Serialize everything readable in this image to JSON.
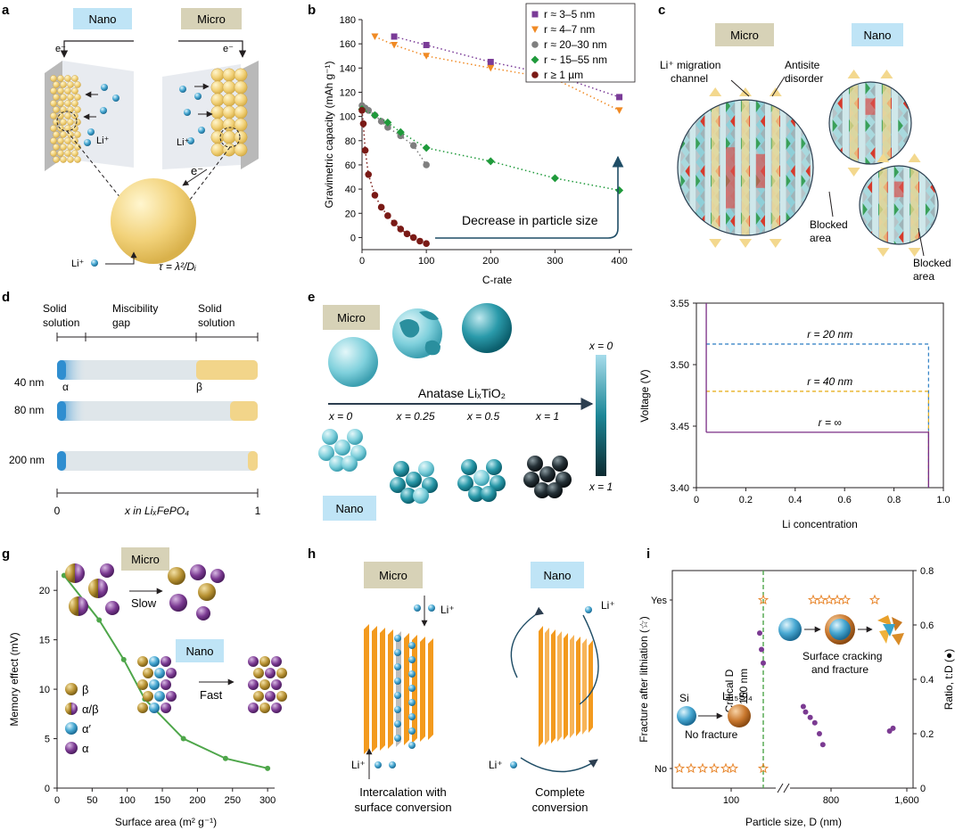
{
  "panels": {
    "a": {
      "letter": "a",
      "nano": "Nano",
      "micro": "Micro",
      "e1": "e⁻",
      "e2": "e⁻",
      "e3": "e⁻",
      "li1": "Li⁺",
      "li2": "Li⁺",
      "li3": "Li⁺",
      "tau": "τ = λ²/Dᵢ"
    },
    "b": {
      "letter": "b",
      "annotation": "Decrease in particle size"
    },
    "c": {
      "letter": "c",
      "micro": "Micro",
      "nano": "Nano",
      "channel1": "Li⁺ migration",
      "channel2": "channel",
      "antisite1": "Antisite",
      "antisite2": "disorder",
      "blocked1a": "Blocked",
      "blocked1b": "area",
      "blocked2a": "Blocked",
      "blocked2b": "area"
    },
    "d": {
      "letter": "d",
      "ss1a": "Solid",
      "ss1b": "solution",
      "gap1": "Miscibility",
      "gap2": "gap",
      "ss2a": "Solid",
      "ss2b": "solution",
      "alpha": "α",
      "beta": "β",
      "r1": "40 nm",
      "r2": "80 nm",
      "r3": "200 nm",
      "x0": "0",
      "x1": "1",
      "xlabel": "x in LiₓFePO₄"
    },
    "e": {
      "letter": "e",
      "micro": "Micro",
      "nano": "Nano",
      "arrow": "Anatase LiₓTiO₂",
      "x0": "x = 0",
      "x025": "x = 0.25",
      "x05": "x = 0.5",
      "x1": "x = 1",
      "cb_top": "x = 0",
      "cb_bot": "x = 1"
    },
    "g": {
      "letter": "g",
      "micro": "Micro",
      "nano": "Nano",
      "slow": "Slow",
      "fast": "Fast",
      "leg_beta": "β",
      "leg_ab": "α/β",
      "leg_ap": "α′",
      "leg_a": "α"
    },
    "h": {
      "letter": "h",
      "micro": "Micro",
      "nano": "Nano",
      "li1": "Li⁺",
      "li2": "Li⁺",
      "li3": "Li⁺",
      "li4": "Li⁺",
      "cap1a": "Intercalation with",
      "cap1b": "surface conversion",
      "cap2a": "Complete",
      "cap2b": "conversion"
    },
    "i": {
      "letter": "i",
      "crit1": "Critical D",
      "crit2": "~ 150 nm",
      "si": "Si",
      "lisi": "Li₁₅Si₄",
      "nofrac": "No fracture",
      "surf1": "Surface cracking",
      "surf2": "and fracture"
    }
  },
  "chart_data": [
    {
      "panel": "b",
      "type": "scatter",
      "xlabel": "C-rate",
      "ylabel": "Gravimetric capacity (mAh g⁻¹)",
      "xlim": [
        0,
        420
      ],
      "ylim": [
        -10,
        180
      ],
      "xticks": [
        0,
        100,
        200,
        300,
        400
      ],
      "yticks": [
        0,
        20,
        40,
        60,
        80,
        100,
        120,
        140,
        160,
        180
      ],
      "legend_position": "top-right",
      "series": [
        {
          "name": "r ≈ 3–5 nm",
          "color": "#7a3b97",
          "marker": "square",
          "x": [
            50,
            100,
            200,
            300,
            400
          ],
          "y": [
            166,
            159,
            145,
            134,
            116
          ]
        },
        {
          "name": "r ≈ 4–7 nm",
          "color": "#f08a24",
          "marker": "triangle",
          "x": [
            20,
            50,
            100,
            200,
            300,
            400
          ],
          "y": [
            166,
            159,
            150,
            140,
            131,
            105
          ]
        },
        {
          "name": "r ≈ 20–30 nm",
          "color": "#7f7f7f",
          "marker": "circle",
          "x": [
            0,
            5,
            10,
            20,
            30,
            40,
            60,
            80,
            100
          ],
          "y": [
            109,
            107,
            105,
            101,
            96,
            91,
            84,
            76,
            60
          ]
        },
        {
          "name": "r ~ 15–55 nm",
          "color": "#1f9a3b",
          "marker": "diamond",
          "x": [
            0,
            20,
            40,
            60,
            100,
            200,
            300,
            400
          ],
          "y": [
            106,
            101,
            95,
            87,
            74,
            63,
            49,
            39
          ]
        },
        {
          "name": "r ≥ 1 µm",
          "color": "#7a1a16",
          "marker": "circle",
          "x": [
            0,
            2,
            5,
            10,
            20,
            30,
            40,
            50,
            60,
            70,
            80,
            90,
            100
          ],
          "y": [
            105,
            94,
            72,
            52,
            35,
            25,
            18,
            12,
            7,
            3,
            0,
            -3,
            -5
          ]
        }
      ]
    },
    {
      "panel": "f",
      "type": "line",
      "xlabel": "Li concentration",
      "ylabel": "Voltage (V)",
      "xlim": [
        0,
        1
      ],
      "ylim": [
        3.4,
        3.55
      ],
      "xticks": [
        0,
        0.2,
        0.4,
        0.6,
        0.8,
        1.0
      ],
      "xtick_labels": [
        "0",
        "0.2",
        "0.4",
        "0.6",
        "0.8",
        "1.0"
      ],
      "yticks": [
        3.4,
        3.45,
        3.5,
        3.55
      ],
      "ytick_labels": [
        "3.40",
        "3.45",
        "3.50",
        "3.55"
      ],
      "series": [
        {
          "name": "r = 20 nm",
          "color": "#3a86c8",
          "dashed": true,
          "plateau": 3.5167,
          "x0": 0.04,
          "x1": 0.94
        },
        {
          "name": "r = 40 nm",
          "color": "#e8b020",
          "dashed": true,
          "plateau": 3.4783,
          "x0": 0.04,
          "x1": 0.94
        },
        {
          "name": "r = ∞",
          "color": "#7a2d86",
          "dashed": false,
          "plateau": 3.445,
          "x0": 0.04,
          "x1": 0.94
        }
      ]
    },
    {
      "panel": "g",
      "type": "line",
      "xlabel": "Surface area (m² g⁻¹)",
      "ylabel": "Memory effect (mV)",
      "xlim": [
        0,
        310
      ],
      "ylim": [
        0,
        22
      ],
      "xticks": [
        0,
        50,
        100,
        150,
        200,
        250,
        300
      ],
      "yticks": [
        0,
        5,
        10,
        15,
        20
      ],
      "series": [
        {
          "name": "",
          "color": "#4ea64a",
          "x": [
            10,
            60,
            95,
            125,
            180,
            240,
            300
          ],
          "y": [
            21.5,
            17,
            13,
            9,
            5,
            3,
            2
          ]
        }
      ]
    },
    {
      "panel": "i",
      "type": "scatter",
      "xlabel": "Particle size, D (nm)",
      "ylabel": "Fracture after lithiation (☆)",
      "y2label": "Ratio, t:D (●)",
      "xticks": [
        100,
        800,
        1600
      ],
      "xtick_labels": [
        "100",
        "800",
        "1,600"
      ],
      "ylabels": [
        "Yes",
        "No"
      ],
      "y2lim": [
        0,
        0.8
      ],
      "y2ticks": [
        0,
        0.2,
        0.4,
        0.6,
        0.8
      ],
      "y2tick_labels": [
        "0",
        "0.2",
        "0.4",
        "0.6",
        "0.8"
      ],
      "stars_no_px": [
        762,
        775,
        788,
        801,
        814,
        822,
        856
      ],
      "stars_yes_px": [
        856,
        912,
        921,
        930,
        939,
        948,
        981
      ],
      "ratio_points": [
        {
          "D": 130,
          "ratio": 0.57
        },
        {
          "D": 132,
          "ratio": 0.51
        },
        {
          "D": 134,
          "ratio": 0.46
        },
        {
          "D": 700,
          "ratio": 0.3
        },
        {
          "D": 720,
          "ratio": 0.28
        },
        {
          "D": 760,
          "ratio": 0.26
        },
        {
          "D": 800,
          "ratio": 0.24
        },
        {
          "D": 840,
          "ratio": 0.2
        },
        {
          "D": 870,
          "ratio": 0.16
        },
        {
          "D": 1450,
          "ratio": 0.21
        },
        {
          "D": 1480,
          "ratio": 0.22
        }
      ]
    }
  ]
}
